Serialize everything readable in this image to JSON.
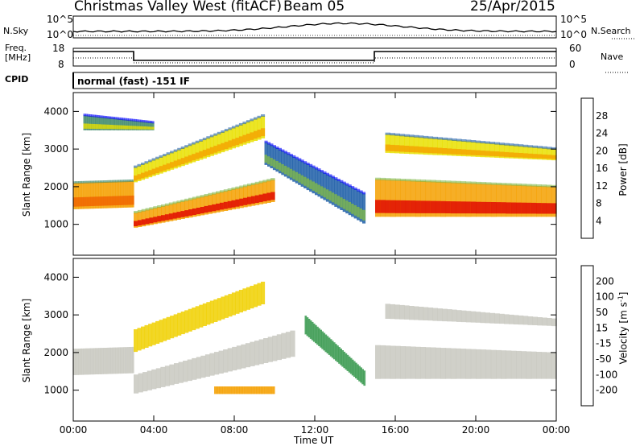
{
  "header": {
    "station": "Christmas Valley West (fitACF)",
    "beam": "Beam 05",
    "date": "25/Apr/2015"
  },
  "noise_panel": {
    "left_label": "N.Sky",
    "right_label": "N.Search",
    "ticks": [
      "10^5",
      "10^0"
    ]
  },
  "freq_panel": {
    "label_lines": [
      "Freq.",
      "[MHz]"
    ],
    "left_ticks": [
      "18",
      "8"
    ],
    "right_ticks": [
      "60",
      "0"
    ],
    "right_label": "Nave"
  },
  "cpid": {
    "label": "CPID",
    "text": "normal (fast) -151 IF"
  },
  "axes": {
    "ylabel": "Slant Range [km]",
    "y_ticks": [
      "1000",
      "2000",
      "3000",
      "4000"
    ],
    "x_ticks": [
      "00:00",
      "04:00",
      "08:00",
      "12:00",
      "16:00",
      "20:00",
      "00:00"
    ],
    "xlabel": "Time UT"
  },
  "colorbars": {
    "power": {
      "label": "Power [dB]",
      "ticks": [
        "4",
        "8",
        "12",
        "16",
        "20",
        "24",
        "28"
      ],
      "colors": [
        "#0000ff",
        "#1f5fa8",
        "#3f8a6a",
        "#7fb84a",
        "#e9e000",
        "#f5a000",
        "#f06000",
        "#e00000"
      ]
    },
    "velocity": {
      "label": "Velocity [m s",
      "label_sup": "-1",
      "label_end": "]",
      "ticks": [
        "200",
        "100",
        "50",
        "15",
        "-15",
        "-50",
        "-100",
        "-200"
      ],
      "colors": [
        "#1a3cc8",
        "#2a7a9a",
        "#3a9a50",
        "#7fd040",
        "#c8c8c0",
        "#f0d000",
        "#f5a000",
        "#f06000",
        "#e00000"
      ]
    }
  },
  "chart_data": [
    {
      "type": "heatmap",
      "title": "Power",
      "xlabel": "Time UT",
      "ylabel": "Slant Range [km]",
      "xlim": [
        0,
        24
      ],
      "ylim": [
        180,
        4500
      ],
      "colorbar": "Power [dB]",
      "colorbar_range": [
        0,
        30
      ],
      "bands": [
        {
          "t": [
            0,
            3
          ],
          "r_start": [
            1400,
            1450
          ],
          "r_end": [
            2100,
            2150
          ],
          "power": 20
        },
        {
          "t": [
            3,
            10
          ],
          "r_start": [
            900,
            1600
          ],
          "r_end": [
            1300,
            2200
          ],
          "power": 22
        },
        {
          "t": [
            3,
            9.5
          ],
          "r_start": [
            2100,
            3300
          ],
          "r_end": [
            2500,
            3900
          ],
          "power": 16
        },
        {
          "t": [
            0.5,
            4
          ],
          "r_start": [
            3500,
            3500
          ],
          "r_end": [
            3900,
            3700
          ],
          "power": 10
        },
        {
          "t": [
            9.5,
            14.5
          ],
          "r_start": [
            2600,
            1000
          ],
          "r_end": [
            3200,
            1800
          ],
          "power": 6
        },
        {
          "t": [
            15,
            24
          ],
          "r_start": [
            1200,
            1200
          ],
          "r_end": [
            2200,
            2000
          ],
          "power": 22
        },
        {
          "t": [
            15.5,
            24
          ],
          "r_start": [
            2900,
            2700
          ],
          "r_end": [
            3400,
            3000
          ],
          "power": 16
        }
      ]
    },
    {
      "type": "heatmap",
      "title": "Velocity",
      "xlabel": "Time UT",
      "ylabel": "Slant Range [km]",
      "xlim": [
        0,
        24
      ],
      "ylim": [
        180,
        4500
      ],
      "colorbar": "Velocity [m s-1]",
      "colorbar_range": [
        -200,
        200
      ],
      "bands": [
        {
          "t": [
            0,
            3
          ],
          "r_start": [
            1400,
            1450
          ],
          "r_end": [
            2100,
            2150
          ],
          "velocity": 0
        },
        {
          "t": [
            3,
            11
          ],
          "r_start": [
            900,
            1900
          ],
          "r_end": [
            1400,
            2600
          ],
          "velocity": 0
        },
        {
          "t": [
            3,
            9.5
          ],
          "r_start": [
            2000,
            3300
          ],
          "r_end": [
            2600,
            3900
          ],
          "velocity": -50
        },
        {
          "t": [
            11.5,
            14.5
          ],
          "r_start": [
            2500,
            1100
          ],
          "r_end": [
            3000,
            1500
          ],
          "velocity": 60
        },
        {
          "t": [
            15,
            24
          ],
          "r_start": [
            1300,
            1300
          ],
          "r_end": [
            2200,
            2000
          ],
          "velocity": 0
        },
        {
          "t": [
            15.5,
            24
          ],
          "r_start": [
            2900,
            2700
          ],
          "r_end": [
            3300,
            2900
          ],
          "velocity": 0
        },
        {
          "t": [
            7,
            10
          ],
          "r_start": [
            900,
            900
          ],
          "r_end": [
            1100,
            1100
          ],
          "velocity": -60
        }
      ]
    }
  ]
}
